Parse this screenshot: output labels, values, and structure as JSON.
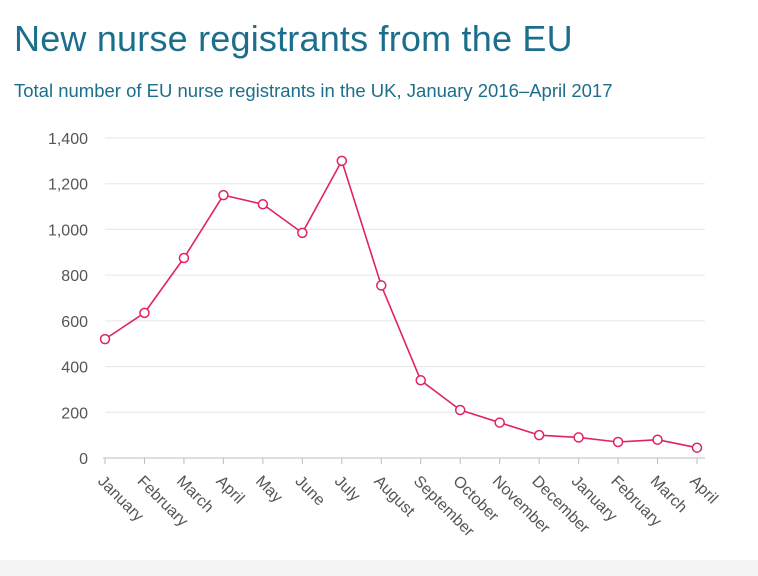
{
  "header": {
    "title": "New nurse registrants from the EU",
    "subtitle": "Total number of EU nurse registrants in the UK, January 2016–April 2017"
  },
  "colors": {
    "title": "#1b6e8c",
    "line": "#e0245e",
    "axis_text": "#555555",
    "grid": "#e6e6e6"
  },
  "chart_data": {
    "type": "line",
    "title": "New nurse registrants from the EU",
    "subtitle": "Total number of EU nurse registrants in the UK, January 2016–April 2017",
    "xlabel": "",
    "ylabel": "",
    "categories": [
      "January",
      "February",
      "March",
      "April",
      "May",
      "June",
      "July",
      "August",
      "September",
      "October",
      "November",
      "December",
      "January",
      "February",
      "March",
      "April"
    ],
    "series": [
      {
        "values": [
          520,
          635,
          875,
          1150,
          1110,
          985,
          1300,
          755,
          340,
          210,
          155,
          100,
          90,
          70,
          80,
          45
        ]
      }
    ],
    "ylim": [
      0,
      1400
    ],
    "yticks": [
      0,
      200,
      400,
      600,
      800,
      1000,
      1200,
      1400
    ],
    "ytick_labels": [
      "0",
      "200",
      "400",
      "600",
      "800",
      "1,000",
      "1,200",
      "1,400"
    ],
    "grid": true,
    "legend": "none"
  }
}
